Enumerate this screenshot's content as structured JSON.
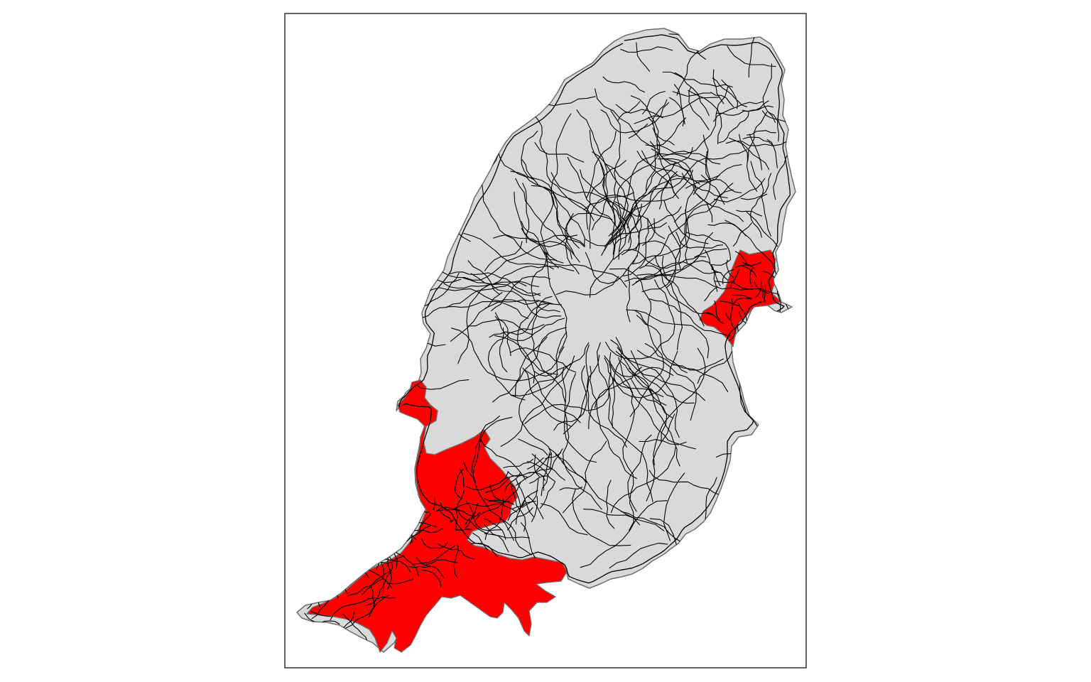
{
  "map": {
    "colors": {
      "background": "#ffffff",
      "frame": "#000000",
      "land_fill": "#d9d9d9",
      "land_outline": "#6e6e6e",
      "highlight_fill": "#ff0000",
      "highlight_outline": "#6e6e6e",
      "lines": "#000000"
    },
    "layers": [
      "land-polygon",
      "highlighted-areas",
      "line-network"
    ],
    "highlighted_area_count": 2
  }
}
